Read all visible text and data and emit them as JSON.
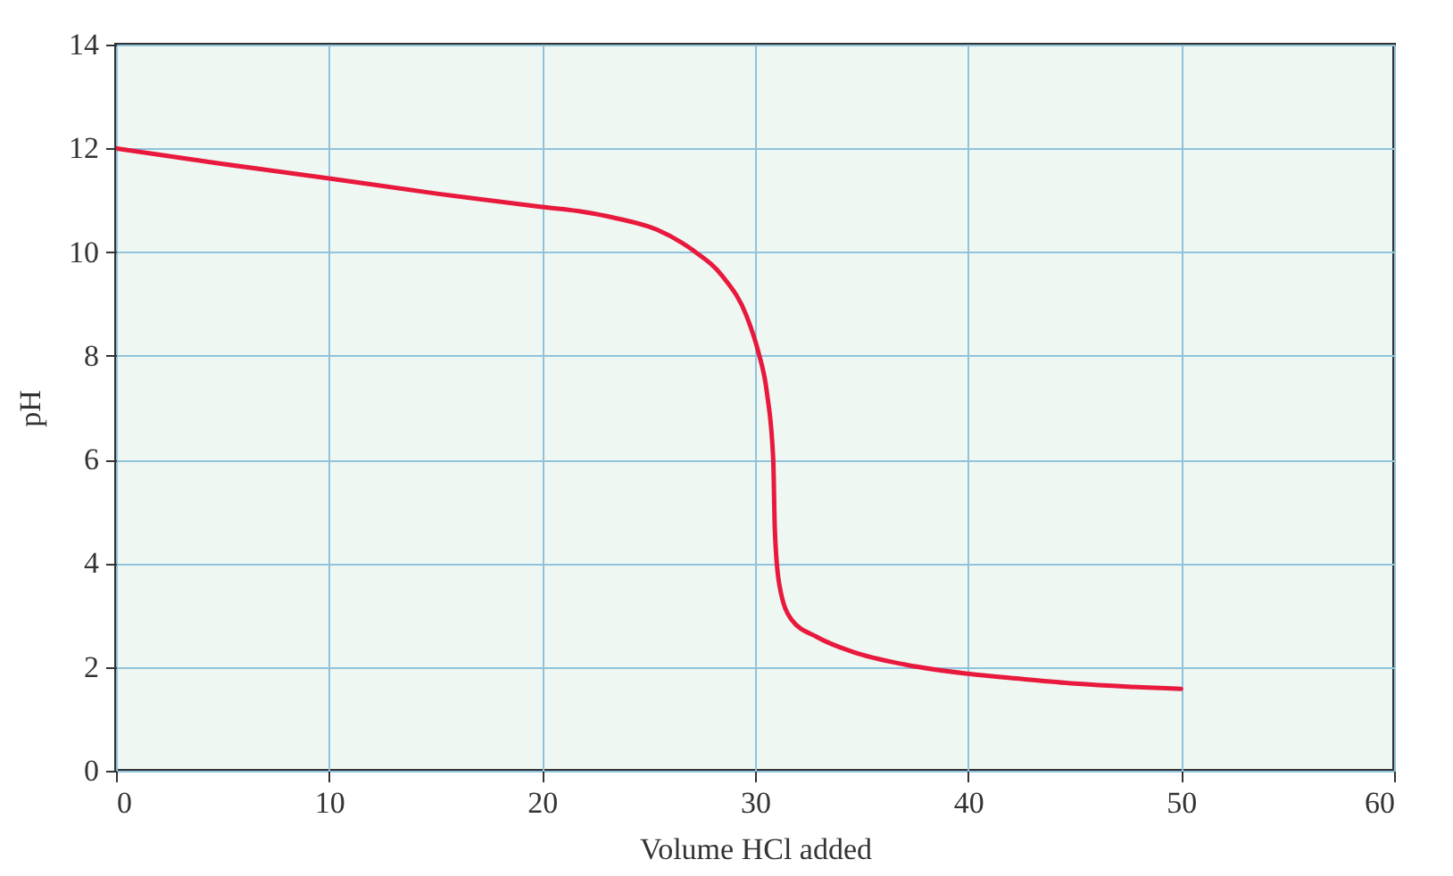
{
  "chart_data": {
    "type": "line",
    "xlabel": "Volume HCl added",
    "ylabel": "pH",
    "x": [
      0,
      5,
      10,
      15,
      20,
      22,
      23.4,
      25.4,
      27.1,
      28.5,
      29.6,
      30.15,
      30.56,
      30.85,
      30.93,
      31.13,
      31.7,
      32.9,
      34.6,
      37,
      40,
      42.5,
      45,
      47.5,
      50
    ],
    "series": [
      {
        "color": "#e8193c",
        "values": [
          12,
          11.7,
          11.42,
          11.13,
          10.87,
          10.77,
          10.66,
          10.43,
          10.03,
          9.52,
          8.77,
          8.08,
          7.28,
          6.02,
          4.64,
          3.61,
          2.92,
          2.58,
          2.29,
          2.05,
          1.87,
          1.77,
          1.68,
          1.62,
          1.58
        ]
      }
    ],
    "xlim": [
      0,
      60
    ],
    "xticks": [
      0,
      10,
      20,
      30,
      40,
      50,
      60
    ],
    "ylim": [
      0,
      14
    ],
    "yticks": [
      0,
      2,
      4,
      6,
      8,
      10,
      12,
      14
    ],
    "grid": true,
    "marker": "none",
    "line_style": "solid"
  }
}
